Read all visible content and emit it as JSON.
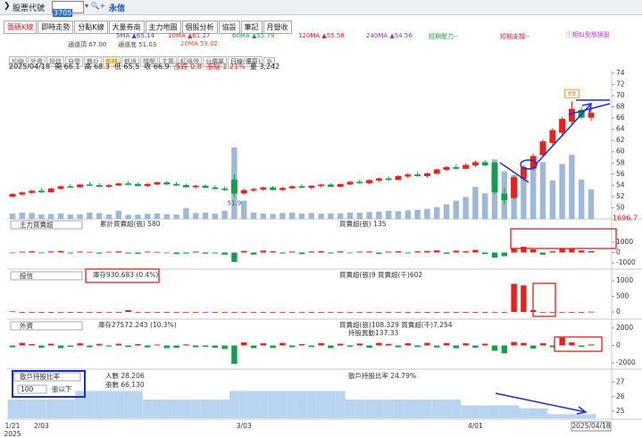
{
  "header": {
    "label": "股票代號",
    "code": "3705",
    "name": "永信"
  },
  "tabs": [
    "籌碼K線",
    "即時走勢",
    "分點K線",
    "大量券商",
    "主力地圖",
    "個股分析",
    "協設",
    "筆記",
    "月營收"
  ],
  "tab_badge": "新",
  "legend": [
    "5MA ▲65.14",
    "10MA ▲61.27",
    "60MA ▲55.79",
    "120MA ▲55.58",
    "240MA ▲54.56",
    "短期壓力--",
    "短期支撐--"
  ],
  "legend2": [
    "通道頂 67.00",
    "通道底 51.03",
    "20MA 59.02"
  ],
  "similar_link": "相似型態換股",
  "toolbar": [
    "均線",
    "外資",
    "投信",
    "自營",
    "散戶",
    "布林",
    "軌道",
    "撐壓",
    "主籌",
    "紅綠燈",
    "分價量"
  ],
  "period": "日線(還原)",
  "info": [
    "2025/04/18",
    "開 66.1",
    "高 68.3",
    "低 65.5",
    "收 66.9",
    "漲跌 0.8",
    "漲幅 1.21%",
    "量 3,242"
  ],
  "side_value": "1696.7",
  "chart_data": [
    {
      "type": "candlestick",
      "categories": [
        "1/21",
        null,
        null,
        "2/03",
        null,
        null,
        null,
        null,
        null,
        null,
        null,
        null,
        null,
        null,
        null,
        null,
        null,
        null,
        null,
        null,
        null,
        null,
        null,
        null,
        "3/03",
        null,
        null,
        null,
        null,
        null,
        null,
        null,
        null,
        null,
        null,
        null,
        null,
        null,
        null,
        null,
        null,
        null,
        null,
        null,
        null,
        null,
        null,
        null,
        "4/01",
        null,
        null,
        null,
        null,
        null,
        null,
        null,
        null,
        null,
        null,
        null,
        "2025/04/18"
      ],
      "x_year": "2025",
      "ohlc": [
        [
          52.0,
          52.6,
          51.8,
          52.4
        ],
        [
          52.4,
          52.9,
          52.2,
          52.7
        ],
        [
          52.7,
          53.2,
          52.5,
          53.0
        ],
        [
          53.0,
          53.5,
          52.6,
          52.8
        ],
        [
          52.8,
          53.6,
          52.7,
          53.4
        ],
        [
          53.4,
          54.0,
          53.2,
          53.8
        ],
        [
          53.8,
          54.2,
          53.5,
          53.7
        ],
        [
          53.7,
          54.3,
          53.6,
          54.1
        ],
        [
          54.1,
          54.6,
          53.9,
          54.0
        ],
        [
          54.0,
          54.4,
          53.7,
          53.8
        ],
        [
          53.8,
          54.2,
          53.6,
          54.0
        ],
        [
          54.0,
          54.5,
          53.9,
          54.3
        ],
        [
          54.3,
          54.8,
          54.0,
          54.2
        ],
        [
          54.2,
          54.5,
          53.8,
          53.9
        ],
        [
          53.9,
          54.4,
          53.7,
          54.2
        ],
        [
          54.2,
          54.7,
          54.0,
          54.5
        ],
        [
          54.5,
          54.8,
          54.1,
          54.2
        ],
        [
          54.2,
          54.6,
          53.9,
          54.0
        ],
        [
          54.0,
          54.3,
          53.6,
          53.7
        ],
        [
          53.7,
          54.1,
          53.4,
          53.9
        ],
        [
          53.9,
          54.2,
          53.5,
          53.6
        ],
        [
          53.6,
          54.0,
          53.2,
          53.4
        ],
        [
          53.4,
          53.8,
          53.0,
          53.2
        ],
        [
          55.0,
          56.0,
          51.9,
          52.6
        ],
        [
          52.6,
          53.4,
          52.3,
          53.1
        ],
        [
          53.1,
          53.6,
          52.8,
          53.3
        ],
        [
          53.3,
          53.8,
          53.0,
          53.6
        ],
        [
          53.6,
          53.9,
          53.1,
          53.2
        ],
        [
          53.2,
          53.7,
          53.0,
          53.5
        ],
        [
          53.5,
          54.0,
          53.3,
          53.8
        ],
        [
          53.8,
          54.2,
          53.5,
          53.6
        ],
        [
          53.6,
          54.0,
          53.3,
          53.9
        ],
        [
          53.9,
          54.3,
          53.6,
          54.1
        ],
        [
          54.1,
          54.4,
          53.7,
          53.8
        ],
        [
          53.8,
          54.3,
          53.6,
          54.2
        ],
        [
          54.2,
          54.8,
          54.0,
          54.6
        ],
        [
          54.6,
          55.0,
          54.3,
          54.4
        ],
        [
          54.4,
          55.1,
          54.2,
          54.9
        ],
        [
          54.9,
          55.4,
          54.6,
          55.2
        ],
        [
          55.2,
          55.6,
          54.8,
          55.0
        ],
        [
          55.0,
          55.8,
          54.9,
          55.6
        ],
        [
          55.6,
          56.2,
          55.3,
          55.9
        ],
        [
          55.9,
          56.4,
          55.5,
          55.7
        ],
        [
          55.7,
          56.3,
          55.4,
          56.1
        ],
        [
          56.1,
          57.0,
          56.0,
          56.8
        ],
        [
          56.8,
          57.5,
          56.5,
          57.2
        ],
        [
          57.2,
          57.8,
          56.8,
          57.0
        ],
        [
          57.0,
          57.9,
          56.9,
          57.6
        ],
        [
          57.6,
          58.4,
          57.3,
          58.1
        ],
        [
          58.1,
          58.5,
          57.4,
          57.6
        ],
        [
          58.0,
          58.2,
          52.4,
          52.8
        ],
        [
          52.5,
          53.6,
          50.6,
          51.4
        ],
        [
          51.8,
          55.8,
          51.5,
          55.4
        ],
        [
          55.2,
          57.6,
          54.8,
          57.2
        ],
        [
          57.0,
          59.6,
          56.6,
          59.2
        ],
        [
          59.4,
          62.2,
          59.0,
          61.8
        ],
        [
          61.6,
          64.2,
          61.2,
          63.8
        ],
        [
          63.4,
          66.2,
          62.8,
          65.8
        ],
        [
          65.4,
          69.0,
          64.8,
          67.6
        ],
        [
          67.4,
          68.0,
          65.8,
          66.1
        ],
        [
          66.1,
          68.3,
          65.5,
          66.9
        ]
      ],
      "ylim": [
        48,
        74.3
      ],
      "yticks": [
        50,
        52,
        54,
        56,
        58,
        60,
        62,
        64,
        66,
        68,
        70,
        72,
        74
      ],
      "up_color": "#e8201e",
      "down_color": "#10a04a"
    },
    {
      "type": "bar",
      "values": [
        600,
        700,
        650,
        500,
        550,
        600,
        480,
        520,
        700,
        650,
        500,
        900,
        450,
        480,
        560,
        600,
        520,
        480,
        1200,
        650,
        700,
        580,
        900,
        7800,
        2000,
        700,
        600,
        550,
        650,
        700,
        600,
        650,
        580,
        600,
        620,
        700,
        680,
        750,
        800,
        900,
        850,
        950,
        1000,
        1100,
        1300,
        1600,
        2000,
        2400,
        3500,
        2800,
        6500,
        5200,
        4800,
        5500,
        6000,
        6200,
        4200,
        6000,
        7000,
        4300,
        3242
      ],
      "color": "#9db8d9"
    },
    {
      "type": "bar",
      "title": "主力買賣超",
      "legend": [
        "累計買賣超(張) 580",
        "買賣超(張) 135"
      ],
      "values": [
        -60,
        80,
        120,
        -70,
        100,
        150,
        -80,
        90,
        60,
        -100,
        70,
        110,
        -90,
        -120,
        80,
        60,
        -70,
        -150,
        -100,
        90,
        -110,
        -80,
        -200,
        -900,
        150,
        -200,
        180,
        120,
        -100,
        90,
        -150,
        100,
        130,
        -90,
        110,
        -60,
        80,
        100,
        -140,
        90,
        120,
        -80,
        110,
        150,
        200,
        -120,
        180,
        120,
        250,
        -150,
        -500,
        -350,
        400,
        550,
        300,
        -200,
        120,
        420,
        350,
        200,
        135
      ],
      "ylim": [
        -1500,
        2100
      ],
      "yticks": [
        1000,
        0,
        -1000
      ],
      "up_color": "#e8201e",
      "down_color": "#10a04a"
    },
    {
      "type": "bar",
      "title": "投信",
      "legend": [
        "庫存930.683 (0.4%)",
        "買賣超(張)9 買賣超(千)602"
      ],
      "values": [
        20,
        0,
        0,
        0,
        0,
        0,
        0,
        0,
        0,
        0,
        0,
        0,
        60,
        0,
        0,
        0,
        0,
        0,
        0,
        0,
        0,
        0,
        0,
        0,
        0,
        0,
        0,
        0,
        0,
        0,
        0,
        0,
        0,
        0,
        0,
        0,
        0,
        0,
        0,
        0,
        0,
        0,
        0,
        0,
        0,
        0,
        0,
        0,
        0,
        0,
        0,
        0,
        900,
        850,
        60,
        0,
        0,
        0,
        0,
        0,
        9
      ],
      "ylim": [
        -200,
        1030
      ],
      "yticks": [
        1000,
        500,
        0
      ],
      "up_color": "#e8201e",
      "down_color": "#10a04a"
    },
    {
      "type": "bar",
      "title": "外資",
      "legend": [
        "庫存27572.243 (10.3%)",
        "買賣超(張)108.329 買賣超(千)7,254",
        "持股異動137.33"
      ],
      "values": [
        -200,
        300,
        150,
        -250,
        200,
        -300,
        -150,
        250,
        -200,
        180,
        -120,
        200,
        -180,
        150,
        -220,
        100,
        -300,
        -260,
        120,
        -200,
        -150,
        -250,
        -400,
        -2100,
        350,
        -300,
        250,
        -280,
        300,
        -200,
        150,
        -180,
        280,
        -300,
        200,
        -150,
        220,
        -250,
        300,
        180,
        -200,
        250,
        -180,
        300,
        -220,
        280,
        -300,
        250,
        -250,
        200,
        -600,
        -900,
        400,
        300,
        -350,
        250,
        -200,
        900,
        350,
        -150,
        108
      ],
      "ylim": [
        -2600,
        2500
      ],
      "yticks": [
        2000,
        0,
        -2000
      ],
      "up_color": "#e8201e",
      "down_color": "#10a04a"
    },
    {
      "type": "area",
      "title": "散戶持股比率",
      "threshold": "100",
      "threshold_unit": "張以下",
      "legend": [
        "人數 28,206",
        "張數 66,130",
        "散戶持股比率 24.79%"
      ],
      "values": [
        25.8,
        25.8,
        25.8,
        25.8,
        25.8,
        25.8,
        25.8,
        26.4,
        26.4,
        26.4,
        26.4,
        26.4,
        26.4,
        26.4,
        25.8,
        25.8,
        25.8,
        25.8,
        25.8,
        25.8,
        25.8,
        25.8,
        25.8,
        26.4,
        26.4,
        26.4,
        26.4,
        26.4,
        26.4,
        26.4,
        26.4,
        26.4,
        26.4,
        26.4,
        26.4,
        25.8,
        25.8,
        25.8,
        25.8,
        25.8,
        25.8,
        25.8,
        25.8,
        25.8,
        25.8,
        25.8,
        25.8,
        25.4,
        25.4,
        25.4,
        25.4,
        25.4,
        25.4,
        25.2,
        25.2,
        25.2,
        24.79,
        24.79,
        24.79,
        24.79,
        24.79
      ],
      "ylim": [
        24.5,
        27.6
      ],
      "yticks": [
        27,
        26,
        25
      ],
      "color": "#b9d4f1"
    }
  ]
}
